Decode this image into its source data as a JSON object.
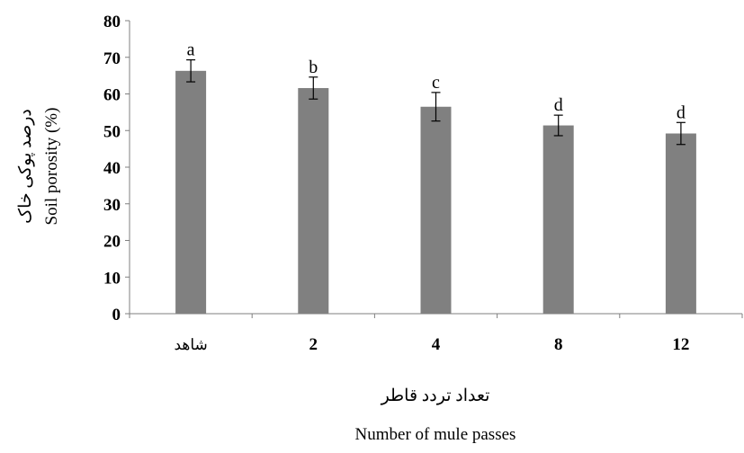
{
  "chart_data": {
    "type": "bar",
    "categories": [
      "شاهد",
      "2",
      "4",
      "8",
      "12"
    ],
    "values": [
      66.3,
      61.6,
      56.5,
      51.4,
      49.2
    ],
    "errors": [
      3.0,
      3.0,
      3.9,
      2.8,
      3.0
    ],
    "significance_letters": [
      "a",
      "b",
      "c",
      "d",
      "d"
    ],
    "xlabel_fa": "تعداد تردد قاطر",
    "xlabel": "Number of mule passes",
    "ylabel_fa": "درصد پوکی خاک",
    "ylabel": "Soil porosity (%)",
    "ylim": [
      0,
      80
    ],
    "yticks": [
      "0",
      "10",
      "20",
      "30",
      "40",
      "50",
      "60",
      "70",
      "80"
    ],
    "grid": false,
    "bar_color": "#808080"
  }
}
